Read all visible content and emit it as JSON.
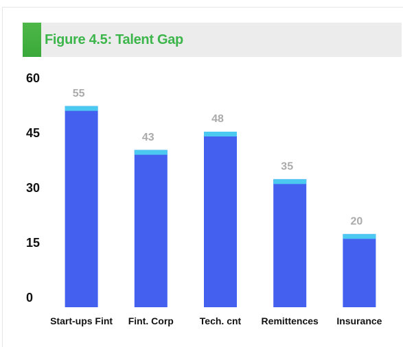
{
  "chart_data": {
    "type": "bar",
    "title": "Figure 4.5: Talent Gap",
    "categories": [
      "Start-ups Fint",
      "Fint. Corp",
      "Tech. cnt",
      "Remittences",
      "Insurance"
    ],
    "values": [
      55,
      43,
      48,
      35,
      20
    ],
    "color": "#4361ee",
    "cap_color": "#4cc9f0",
    "value_label_color": "#aaaaaa",
    "ylim": [
      0,
      60
    ],
    "yticks": [
      0,
      15,
      30,
      45,
      60
    ],
    "grid": false
  }
}
